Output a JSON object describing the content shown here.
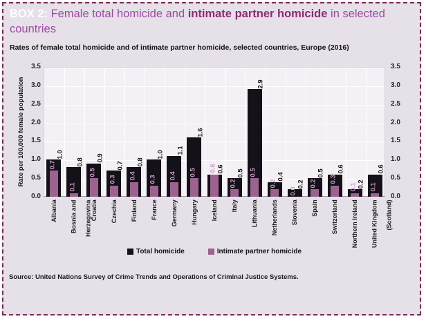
{
  "header": {
    "box_label": "BOX 2:",
    "title_part1": " Female total homicide and ",
    "title_emphasis": "intimate partner homicide",
    "title_part2": " in selected",
    "title_line2": "countries"
  },
  "subtitle": "Rates of female total homicide and of intimate partner homicide, selected countries, Europe (2016)",
  "source": "Source: United Nations Survey of Crime Trends and Operations of Criminal Justice Systems.",
  "colors": {
    "box_background": "#e6e0e8",
    "box_border": "#7b2957",
    "plot_background": "#f4f0f5",
    "gridline": "#ffffff",
    "total_bar": "#141118",
    "ipv_bar": "#9d6390",
    "total_value_label": "#141414",
    "ipv_value_label": "#c99fc6",
    "title_regular": "#9c4ba2",
    "title_emphasis": "#8d2b76",
    "box_label": "#ffffff"
  },
  "chart_data": {
    "type": "bar",
    "title": "Rates of female total homicide and of intimate partner homicide, selected countries, Europe (2016)",
    "xlabel": "",
    "ylabel": "Rate per 100,000 female population",
    "ylim": [
      0,
      3.5
    ],
    "ytick_step": 0.5,
    "grid": true,
    "legend_position": "bottom",
    "bar_style": "overlapped",
    "value_label_rotation": 90,
    "x_tick_rotation": 90,
    "categories": [
      "Albania",
      "Bosnia and\nHerzegovina",
      "Croatia",
      "Czechia",
      "Finland",
      "France",
      "Germany",
      "Hungary",
      "Iceland",
      "Italy",
      "Lithuania",
      "Netherlands",
      "Slovenia",
      "Spain",
      "Switzerland",
      "Northern Ireland",
      "United Kingdom\n(Scotland)"
    ],
    "series": [
      {
        "name": "Total homicide",
        "color": "#141118",
        "label_color": "#141414",
        "values": [
          1.0,
          0.8,
          0.9,
          0.7,
          0.8,
          1.0,
          1.1,
          1.6,
          0.6,
          0.5,
          2.9,
          0.4,
          0.2,
          0.5,
          0.6,
          0.2,
          0.6
        ]
      },
      {
        "name": "Intimate partner homicide",
        "color": "#9d6390",
        "label_color": "#c99fc6",
        "values": [
          0.7,
          0.1,
          0.5,
          0.3,
          0.4,
          0.3,
          0.4,
          0.5,
          0.6,
          0.2,
          0.5,
          0.2,
          0.0,
          0.2,
          0.3,
          0.1,
          0.1
        ]
      }
    ]
  }
}
